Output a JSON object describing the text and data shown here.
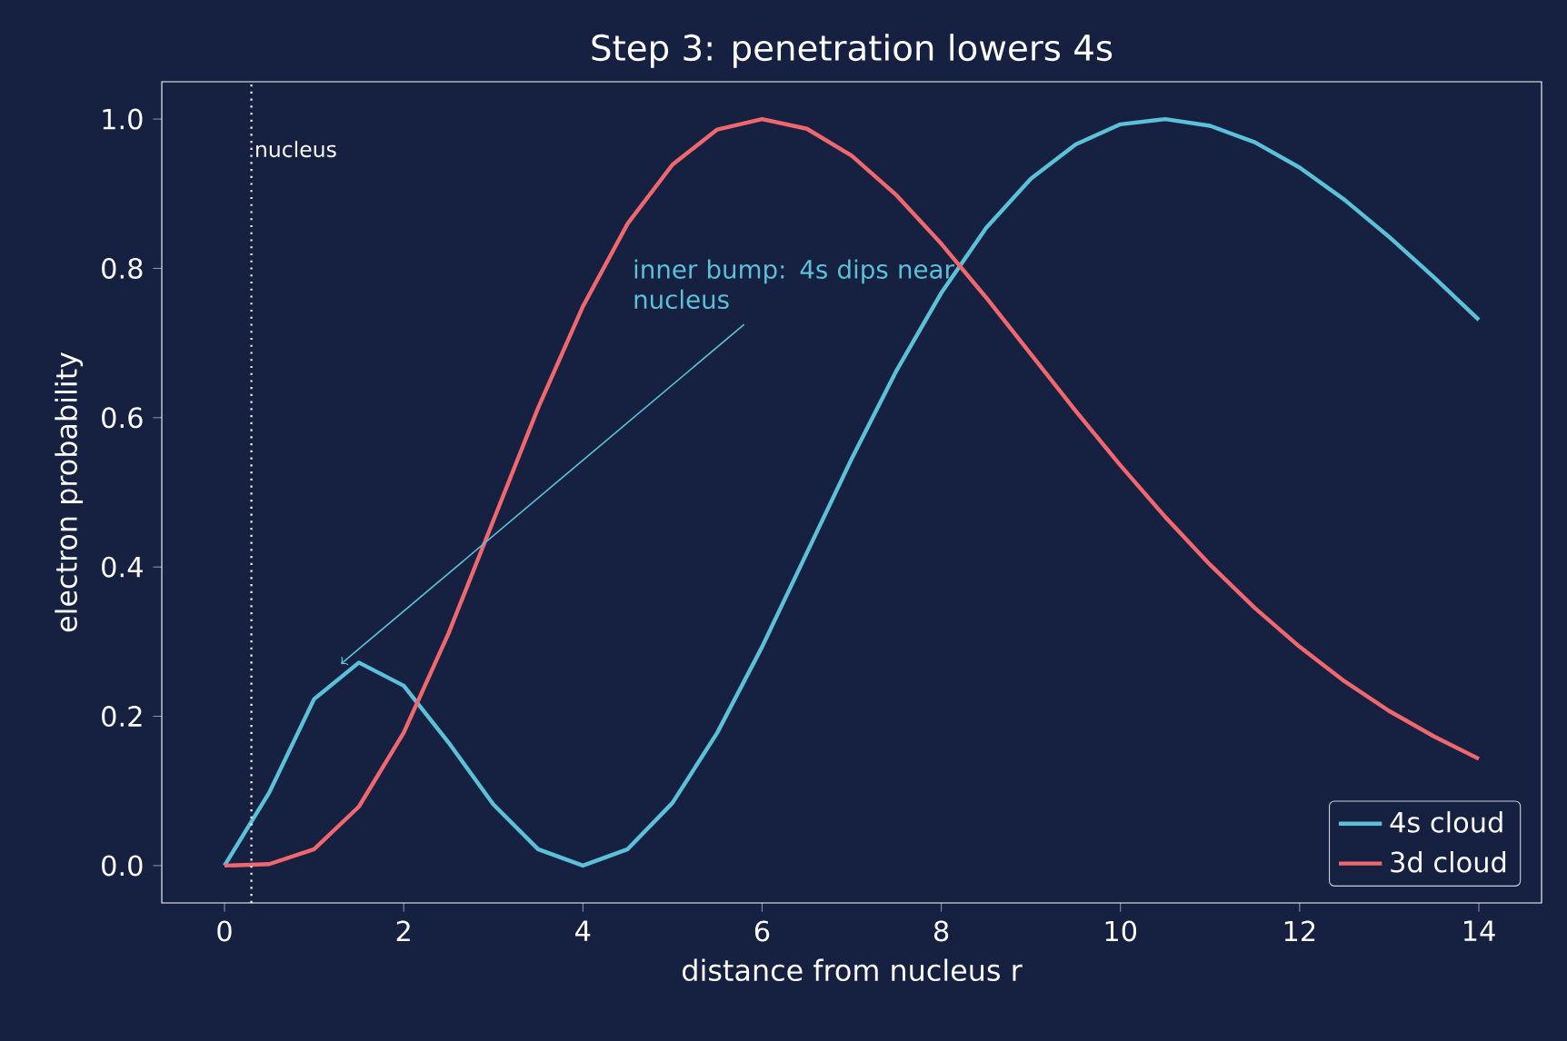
{
  "chart_data": {
    "type": "line",
    "title": "Step 3: penetration lowers 4s",
    "xlabel": "distance from nucleus  r",
    "ylabel": "electron probability",
    "x": [
      0,
      0.5,
      1,
      1.5,
      2,
      2.5,
      3,
      3.5,
      4,
      4.5,
      5,
      5.5,
      6,
      6.5,
      7,
      7.5,
      8,
      8.5,
      9,
      9.5,
      10,
      10.5,
      11,
      11.5,
      12,
      12.5,
      13,
      13.5,
      14
    ],
    "series": [
      {
        "name": "4s cloud",
        "color": "#5bc0d8",
        "values": [
          0,
          0.098,
          0.223,
          0.272,
          0.241,
          0.165,
          0.082,
          0.022,
          0,
          0.022,
          0.084,
          0.178,
          0.293,
          0.419,
          0.545,
          0.663,
          0.767,
          0.854,
          0.92,
          0.966,
          0.993,
          1.0,
          0.991,
          0.969,
          0.935,
          0.892,
          0.842,
          0.788,
          0.731
        ]
      },
      {
        "name": "3d cloud",
        "color": "#f0686e",
        "values": [
          0,
          0.002,
          0.022,
          0.079,
          0.178,
          0.311,
          0.462,
          0.613,
          0.749,
          0.86,
          0.939,
          0.986,
          1.0,
          0.987,
          0.951,
          0.898,
          0.833,
          0.761,
          0.685,
          0.609,
          0.536,
          0.467,
          0.403,
          0.345,
          0.293,
          0.247,
          0.207,
          0.173,
          0.143
        ]
      }
    ],
    "xlim": [
      -0.7,
      14.7
    ],
    "ylim": [
      -0.05,
      1.05
    ],
    "xticks": [
      0,
      2,
      4,
      6,
      8,
      10,
      12,
      14
    ],
    "yticks": [
      {
        "value": 0,
        "label": "0.0"
      },
      {
        "value": 0.2,
        "label": "0.2"
      },
      {
        "value": 0.4,
        "label": "0.4"
      },
      {
        "value": 0.6,
        "label": "0.6"
      },
      {
        "value": 0.8,
        "label": "0.8"
      },
      {
        "value": 1.0,
        "label": "1.0"
      }
    ],
    "ref_lines": [
      {
        "axis": "x",
        "value": 0.3,
        "label": "nucleus",
        "color": "#ffffff",
        "line_style": "dotted"
      }
    ],
    "annotations": [
      {
        "text": "inner bump: 4s dips near nucleus",
        "x": 1.3,
        "y": 0.27
      }
    ],
    "legend": "bottom right",
    "grid": false,
    "marker": "none",
    "line_style": "solid"
  }
}
